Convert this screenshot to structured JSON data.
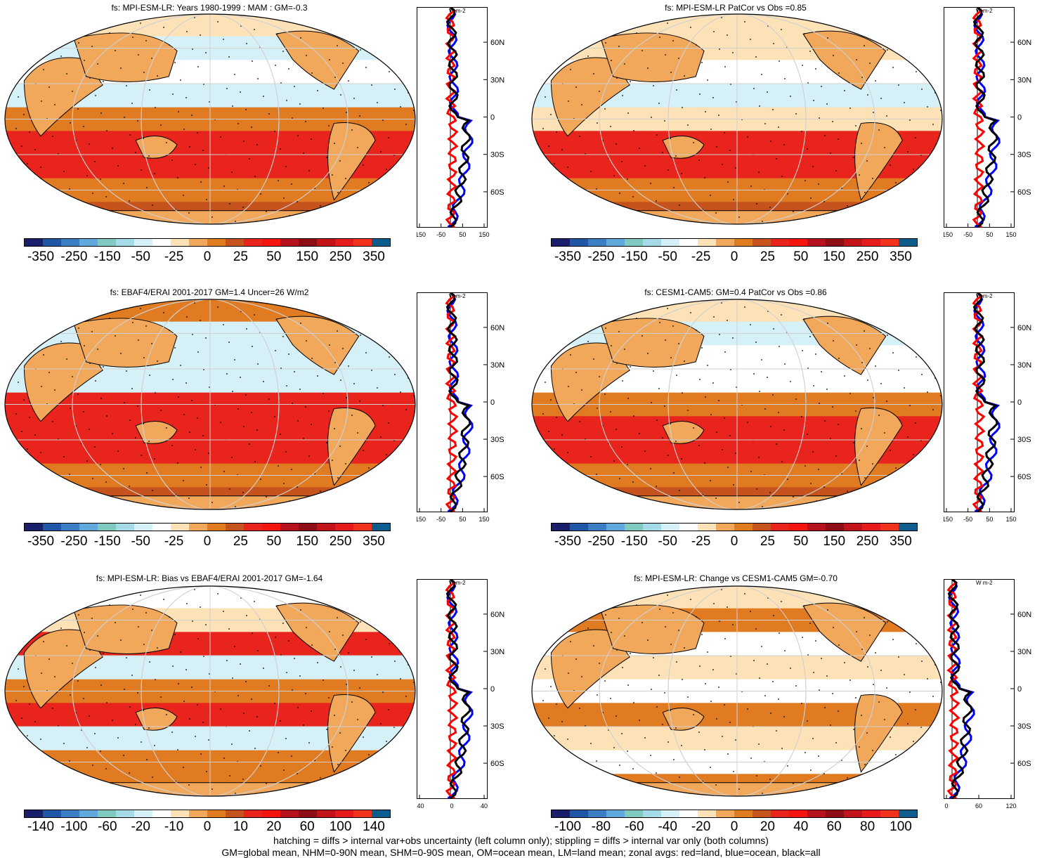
{
  "panels": [
    {
      "title": "fs: MPI-ESM-LR: Years 1980-1999 : MAM : GM=-0.3",
      "cbar": "A",
      "zonal_ticks": [
        "-150",
        "-50",
        "50",
        "150"
      ]
    },
    {
      "title": "fs: MPI-ESM-LR PatCor vs Obs =0.85",
      "cbar": "A",
      "zonal_ticks": [
        "-150",
        "-50",
        "50",
        "150"
      ]
    },
    {
      "title": "fs: EBAF4/ERAI 2001-2017 GM=1.4 Uncer=26 W/m2",
      "cbar": "A",
      "zonal_ticks": [
        "-150",
        "-50",
        "50",
        "150"
      ]
    },
    {
      "title": "fs: CESM1-CAM5: GM=0.4 PatCor vs Obs =0.86",
      "cbar": "A",
      "zonal_ticks": [
        "-150",
        "-50",
        "50",
        "150"
      ]
    },
    {
      "title": "fs: MPI-ESM-LR: Bias vs EBAF4/ERAI 2001-2017 GM=-1.64",
      "cbar": "B",
      "zonal_ticks": [
        "-40",
        "0",
        "40"
      ]
    },
    {
      "title": "fs: MPI-ESM-LR: Change vs CESM1-CAM5 GM=-0.70",
      "cbar": "C",
      "zonal_ticks": [
        "0",
        "60",
        "120"
      ]
    }
  ],
  "colorbars": {
    "A": [
      "-350",
      "-250",
      "-150",
      "-50",
      "-25",
      "0",
      "25",
      "50",
      "150",
      "250",
      "350"
    ],
    "B": [
      "-140",
      "-100",
      "-60",
      "-20",
      "-10",
      "0",
      "10",
      "20",
      "60",
      "100",
      "140"
    ],
    "C": [
      "-100",
      "-80",
      "-60",
      "-40",
      "-20",
      "0",
      "20",
      "40",
      "60",
      "80",
      "100"
    ]
  },
  "colorbar_colors": [
    "#1a1f6b",
    "#1f56a6",
    "#3a7fc4",
    "#60a9dc",
    "#7fc9c0",
    "#a5dbe8",
    "#d6f0f7",
    "#ffffff",
    "#fde2b8",
    "#f2a85b",
    "#e07b22",
    "#c6531d",
    "#e8241d",
    "#f6140e",
    "#b5111e",
    "#8c0d14",
    "#c11318",
    "#e61b1b",
    "#f3321c",
    "#0e5c8c"
  ],
  "zonal": {
    "unit": "W m-2",
    "lat_labels": [
      "60N",
      "30N",
      "0",
      "30S",
      "60S"
    ],
    "legend_colors": {
      "land": "#ff0000",
      "ocean": "#0000ff",
      "all": "#000000"
    }
  },
  "footnotes": [
    "hatching = diffs > internal var+obs uncertainty (left column only); stippling = diffs > internal var only (both columns)",
    "GM=global mean, NHM=0-90N mean, SHM=0-90S mean, OM=ocean mean, LM=land mean; zonal avgs: red=land, blue=ocean, black=all"
  ]
}
